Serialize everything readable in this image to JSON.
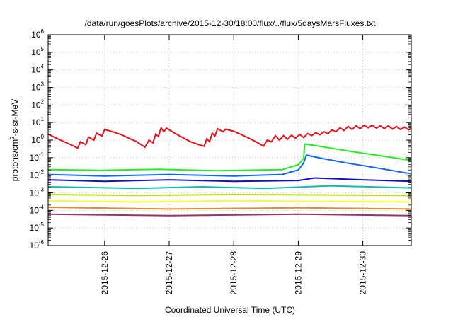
{
  "chart_data": {
    "type": "line",
    "title": "/data/run/goesPlots/archive/2015-12-30/18:00/flux/../flux/5daysMarsFluxes.txt",
    "xlabel": "Coordinated Universal Time (UTC)",
    "ylabel_parts": {
      "main": "protons/cm",
      "sup": "2",
      "rest": "-s-sr-MeV"
    },
    "y_scale": "log",
    "ylim": [
      1e-06,
      1000000.0
    ],
    "y_ticks": [
      {
        "value": 1e-06,
        "base": "10",
        "exp": "-6"
      },
      {
        "value": 1e-05,
        "base": "10",
        "exp": "-5"
      },
      {
        "value": 0.0001,
        "base": "10",
        "exp": "-4"
      },
      {
        "value": 0.001,
        "base": "10",
        "exp": "-3"
      },
      {
        "value": 0.01,
        "base": "10",
        "exp": "-2"
      },
      {
        "value": 0.1,
        "base": "10",
        "exp": "-1"
      },
      {
        "value": 1.0,
        "base": "10",
        "exp": "0"
      },
      {
        "value": 10.0,
        "base": "10",
        "exp": "1"
      },
      {
        "value": 100.0,
        "base": "10",
        "exp": "2"
      },
      {
        "value": 1000.0,
        "base": "10",
        "exp": "3"
      },
      {
        "value": 10000.0,
        "base": "10",
        "exp": "4"
      },
      {
        "value": 100000.0,
        "base": "10",
        "exp": "5"
      },
      {
        "value": 1000000.0,
        "base": "10",
        "exp": "6"
      }
    ],
    "xlim": [
      "2015-12-25 03:00",
      "2015-12-30 18:00"
    ],
    "x_ticks": [
      "2015-12-26",
      "2015-12-27",
      "2015-12-28",
      "2015-12-29",
      "2015-12-30"
    ],
    "grid": true,
    "legend": "none",
    "series": [
      {
        "color": "#e8101a",
        "values": [
          [
            "2015-12-25 03:00",
            2.2
          ],
          [
            "2015-12-25 06:00",
            1.3
          ],
          [
            "2015-12-25 09:00",
            0.8
          ],
          [
            "2015-12-25 12:00",
            0.5
          ],
          [
            "2015-12-25 14:00",
            0.35
          ],
          [
            "2015-12-25 15:00",
            0.8
          ],
          [
            "2015-12-25 17:00",
            0.55
          ],
          [
            "2015-12-25 18:00",
            1.5
          ],
          [
            "2015-12-25 20:00",
            1.0
          ],
          [
            "2015-12-25 21:00",
            2.5
          ],
          [
            "2015-12-25 23:00",
            1.7
          ],
          [
            "2015-12-26 00:00",
            4.0
          ],
          [
            "2015-12-26 03:00",
            3.0
          ],
          [
            "2015-12-26 06:00",
            2.1
          ],
          [
            "2015-12-26 09:00",
            1.3
          ],
          [
            "2015-12-26 12:00",
            0.8
          ],
          [
            "2015-12-26 15:00",
            0.4
          ],
          [
            "2015-12-26 16:30",
            1.0
          ],
          [
            "2015-12-26 18:00",
            0.7
          ],
          [
            "2015-12-26 19:00",
            2.2
          ],
          [
            "2015-12-26 20:00",
            1.6
          ],
          [
            "2015-12-26 21:00",
            5.0
          ],
          [
            "2015-12-26 22:00",
            3.0
          ],
          [
            "2015-12-26 23:00",
            4.8
          ],
          [
            "2015-12-27 02:00",
            2.5
          ],
          [
            "2015-12-27 05:00",
            1.4
          ],
          [
            "2015-12-27 08:00",
            0.8
          ],
          [
            "2015-12-27 11:00",
            0.55
          ],
          [
            "2015-12-27 13:00",
            0.45
          ],
          [
            "2015-12-27 14:00",
            1.2
          ],
          [
            "2015-12-27 15:00",
            0.8
          ],
          [
            "2015-12-27 16:00",
            2.5
          ],
          [
            "2015-12-27 17:00",
            1.7
          ],
          [
            "2015-12-27 18:00",
            4.5
          ],
          [
            "2015-12-27 20:00",
            3.0
          ],
          [
            "2015-12-27 21:00",
            4.2
          ],
          [
            "2015-12-28 00:00",
            3.2
          ],
          [
            "2015-12-28 03:00",
            2.0
          ],
          [
            "2015-12-28 06:00",
            1.2
          ],
          [
            "2015-12-28 09:00",
            0.7
          ],
          [
            "2015-12-28 11:00",
            0.45
          ],
          [
            "2015-12-28 12:30",
            1.0
          ],
          [
            "2015-12-28 14:00",
            0.8
          ],
          [
            "2015-12-28 15:30",
            1.8
          ],
          [
            "2015-12-28 17:00",
            1.0
          ],
          [
            "2015-12-28 18:30",
            1.8
          ],
          [
            "2015-12-28 20:00",
            1.1
          ],
          [
            "2015-12-28 21:30",
            1.9
          ],
          [
            "2015-12-28 23:00",
            1.3
          ],
          [
            "2015-12-29 00:30",
            2.1
          ],
          [
            "2015-12-29 02:00",
            1.4
          ],
          [
            "2015-12-29 03:30",
            2.4
          ],
          [
            "2015-12-29 05:00",
            1.8
          ],
          [
            "2015-12-29 06:30",
            2.7
          ],
          [
            "2015-12-29 08:00",
            2.0
          ],
          [
            "2015-12-29 09:30",
            3.0
          ],
          [
            "2015-12-29 11:00",
            2.3
          ],
          [
            "2015-12-29 12:30",
            3.8
          ],
          [
            "2015-12-29 14:00",
            3.0
          ],
          [
            "2015-12-29 15:30",
            5.0
          ],
          [
            "2015-12-29 17:00",
            3.5
          ],
          [
            "2015-12-29 18:30",
            6.0
          ],
          [
            "2015-12-29 20:00",
            4.0
          ],
          [
            "2015-12-29 21:30",
            6.5
          ],
          [
            "2015-12-29 23:00",
            4.5
          ],
          [
            "2015-12-30 00:30",
            7.0
          ],
          [
            "2015-12-30 02:00",
            5.0
          ],
          [
            "2015-12-30 03:30",
            7.0
          ],
          [
            "2015-12-30 05:00",
            4.8
          ],
          [
            "2015-12-30 06:30",
            6.5
          ],
          [
            "2015-12-30 08:00",
            4.5
          ],
          [
            "2015-12-30 09:30",
            6.5
          ],
          [
            "2015-12-30 11:00",
            4.2
          ],
          [
            "2015-12-30 12:30",
            6.0
          ],
          [
            "2015-12-30 14:00",
            4.0
          ],
          [
            "2015-12-30 15:30",
            5.5
          ],
          [
            "2015-12-30 17:00",
            3.8
          ],
          [
            "2015-12-30 18:00",
            4.8
          ]
        ]
      },
      {
        "color": "#22ee22",
        "values": [
          [
            "2015-12-25 03:00",
            0.021
          ],
          [
            "2015-12-25 22:00",
            0.019
          ],
          [
            "2015-12-26 20:00",
            0.022
          ],
          [
            "2015-12-27 18:00",
            0.018
          ],
          [
            "2015-12-28 18:00",
            0.021
          ],
          [
            "2015-12-29 00:00",
            0.04
          ],
          [
            "2015-12-29 02:00",
            0.09
          ],
          [
            "2015-12-29 02:20",
            0.6
          ],
          [
            "2015-12-29 06:00",
            0.5
          ],
          [
            "2015-12-29 12:00",
            0.35
          ],
          [
            "2015-12-29 18:00",
            0.25
          ],
          [
            "2015-12-30 00:00",
            0.18
          ],
          [
            "2015-12-30 08:00",
            0.12
          ],
          [
            "2015-12-30 18:00",
            0.07
          ]
        ]
      },
      {
        "color": "#1166ee",
        "values": [
          [
            "2015-12-25 03:00",
            0.011
          ],
          [
            "2015-12-26 00:00",
            0.009
          ],
          [
            "2015-12-27 00:00",
            0.011
          ],
          [
            "2015-12-28 00:00",
            0.009
          ],
          [
            "2015-12-28 18:00",
            0.011
          ],
          [
            "2015-12-29 00:00",
            0.02
          ],
          [
            "2015-12-29 02:00",
            0.05
          ],
          [
            "2015-12-29 03:00",
            0.14
          ],
          [
            "2015-12-29 09:00",
            0.09
          ],
          [
            "2015-12-29 18:00",
            0.05
          ],
          [
            "2015-12-30 06:00",
            0.025
          ],
          [
            "2015-12-30 18:00",
            0.012
          ]
        ]
      },
      {
        "color": "#1111cc",
        "values": [
          [
            "2015-12-25 03:00",
            0.0055
          ],
          [
            "2015-12-26 00:00",
            0.0045
          ],
          [
            "2015-12-27 00:00",
            0.0055
          ],
          [
            "2015-12-28 00:00",
            0.0045
          ],
          [
            "2015-12-29 00:00",
            0.005
          ],
          [
            "2015-12-29 06:00",
            0.007
          ],
          [
            "2015-12-30 00:00",
            0.0055
          ],
          [
            "2015-12-30 18:00",
            0.0045
          ]
        ]
      },
      {
        "color": "#11bbaa",
        "values": [
          [
            "2015-12-25 03:00",
            0.0022
          ],
          [
            "2015-12-26 12:00",
            0.0018
          ],
          [
            "2015-12-27 12:00",
            0.0022
          ],
          [
            "2015-12-28 12:00",
            0.0018
          ],
          [
            "2015-12-29 12:00",
            0.0025
          ],
          [
            "2015-12-30 18:00",
            0.0019
          ]
        ]
      },
      {
        "color": "#b8e010",
        "values": [
          [
            "2015-12-25 03:00",
            0.0008
          ],
          [
            "2015-12-26 12:00",
            0.0007
          ],
          [
            "2015-12-28 00:00",
            0.0008
          ],
          [
            "2015-12-30 18:00",
            0.0007
          ]
        ]
      },
      {
        "color": "#ffff22",
        "values": [
          [
            "2015-12-25 03:00",
            0.00035
          ],
          [
            "2015-12-26 12:00",
            0.0003
          ],
          [
            "2015-12-28 00:00",
            0.00035
          ],
          [
            "2015-12-30 18:00",
            0.0003
          ]
        ]
      },
      {
        "color": "#ee8822",
        "values": [
          [
            "2015-12-25 03:00",
            0.00015
          ],
          [
            "2015-12-27 00:00",
            0.00012
          ],
          [
            "2015-12-29 00:00",
            0.00014
          ],
          [
            "2015-12-30 18:00",
            0.00012
          ]
        ]
      },
      {
        "color": "#993366",
        "values": [
          [
            "2015-12-25 03:00",
            6e-05
          ],
          [
            "2015-12-27 00:00",
            5e-05
          ],
          [
            "2015-12-29 00:00",
            6e-05
          ],
          [
            "2015-12-30 18:00",
            5e-05
          ]
        ]
      }
    ]
  }
}
